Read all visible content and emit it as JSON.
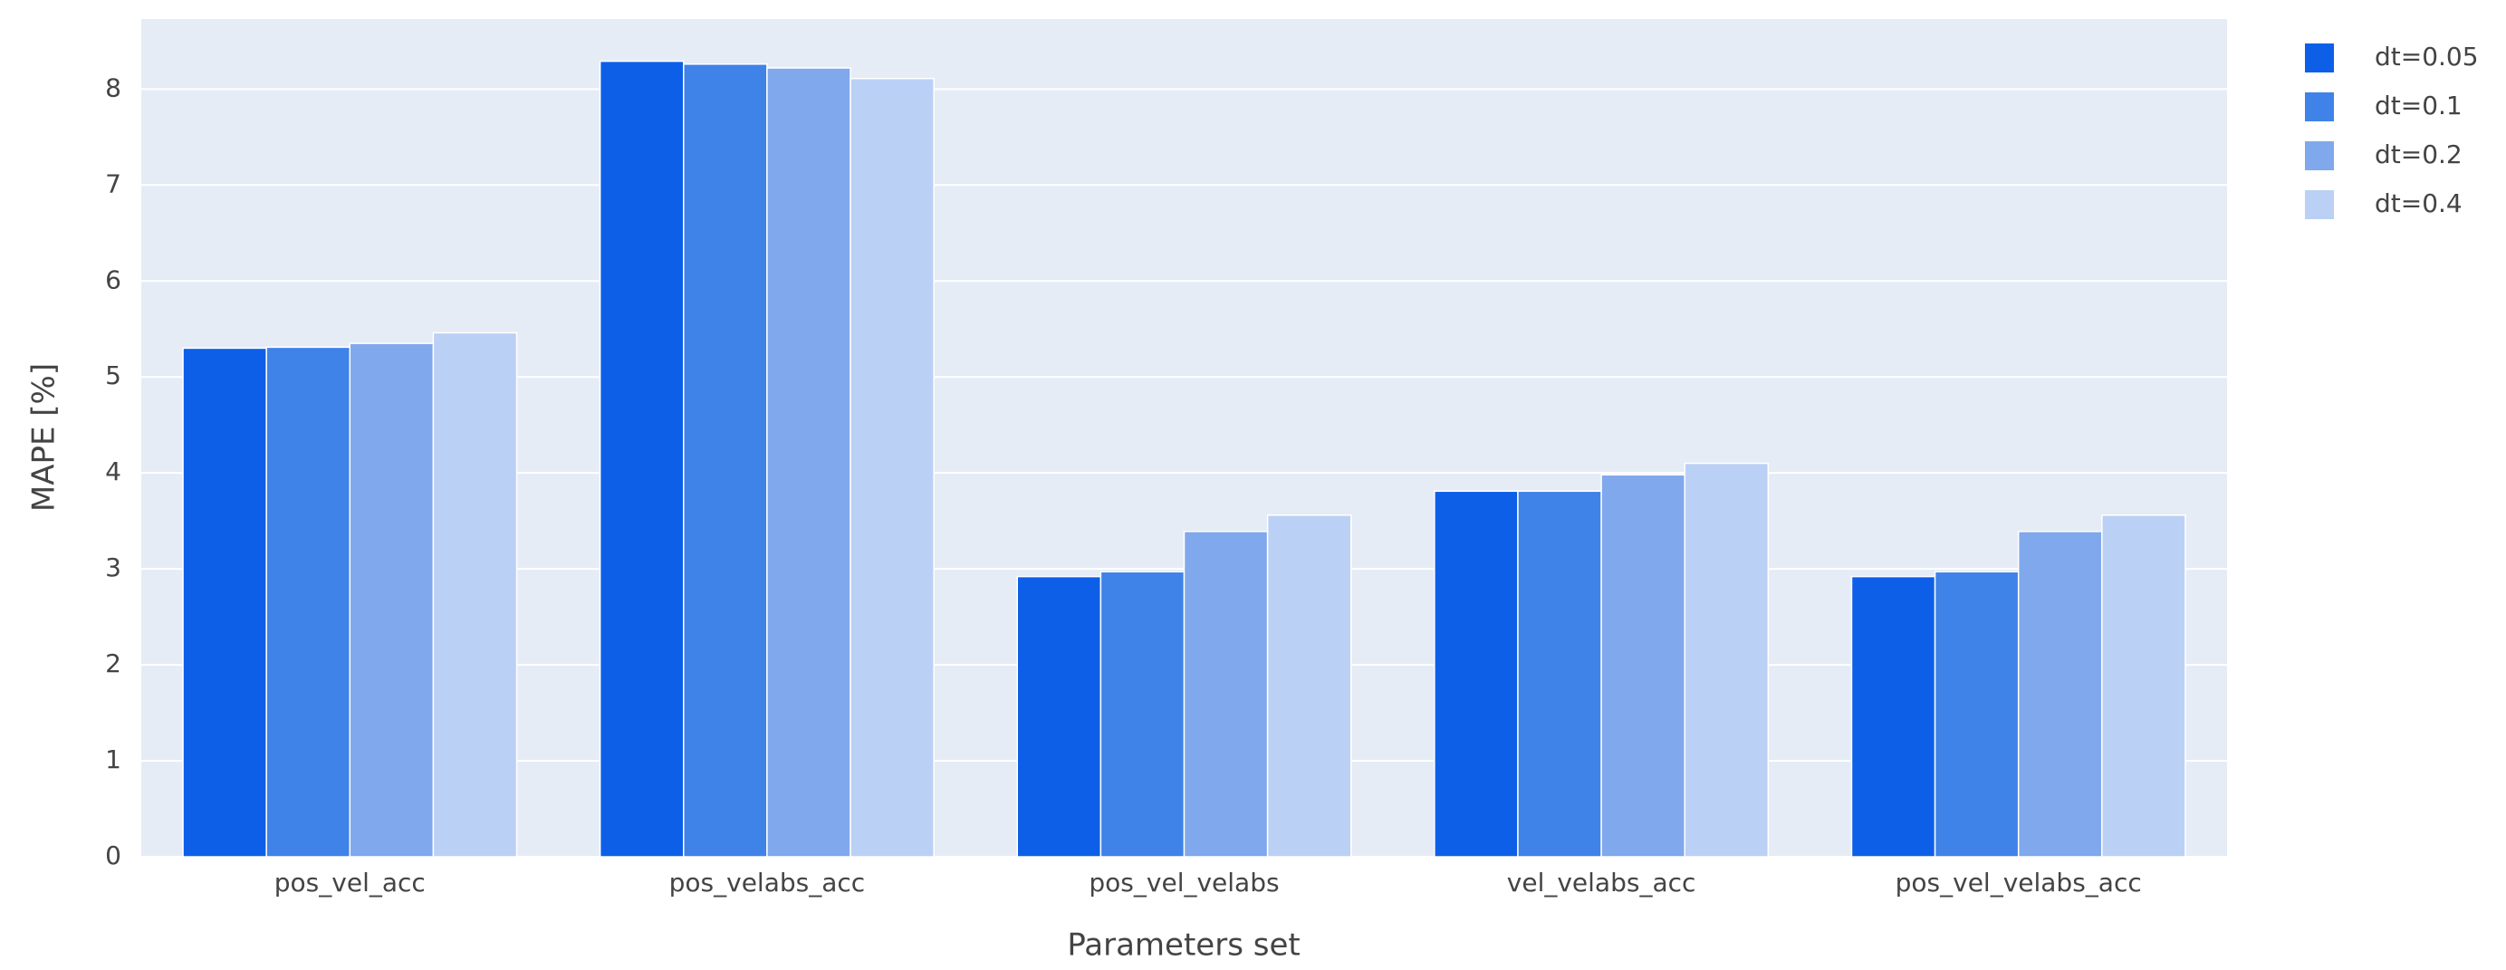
{
  "chart_data": {
    "type": "bar",
    "x_label": "Parameters set",
    "y_label": "MAPE [%]",
    "categories": [
      "pos_vel_acc",
      "pos_velabs_acc",
      "pos_vel_velabs",
      "vel_velabs_acc",
      "pos_vel_velabs_acc"
    ],
    "series": [
      {
        "name": "dt=0.05",
        "color": "#0d5fe8",
        "values": [
          5.3,
          8.29,
          2.92,
          3.81,
          2.92
        ]
      },
      {
        "name": "dt=0.1",
        "color": "#3f82e8",
        "values": [
          5.31,
          8.26,
          2.97,
          3.81,
          2.97
        ]
      },
      {
        "name": "dt=0.2",
        "color": "#80a8ec",
        "values": [
          5.35,
          8.22,
          3.39,
          3.98,
          3.39
        ]
      },
      {
        "name": "dt=0.4",
        "color": "#bbd0f5",
        "values": [
          5.46,
          8.11,
          3.56,
          4.1,
          3.56
        ]
      }
    ],
    "ylim": [
      0,
      8.73
    ],
    "yticks": [
      0,
      1,
      2,
      3,
      4,
      5,
      6,
      7,
      8
    ],
    "grid": true,
    "legend": "right"
  }
}
